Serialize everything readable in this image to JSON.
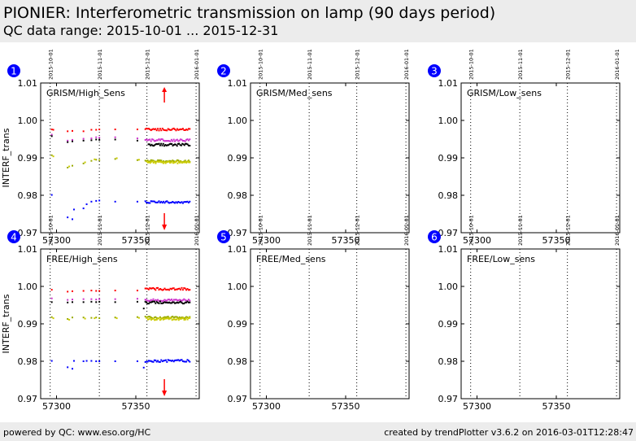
{
  "header": {
    "title": "PIONIER: Interferometric transmission on lamp (90 days period)",
    "subtitle": "QC data range: 2015-10-01 ... 2015-12-31"
  },
  "footer": {
    "left": "powered by QC: www.eso.org/HC",
    "right": "created by trendPlotter v3.6.2 on 2016-03-01T12:28:47"
  },
  "colors": {
    "red": "#ff0000",
    "magenta": "#cc33cc",
    "black": "#000000",
    "olive": "#99aa00",
    "yellow": "#cccc00",
    "blue": "#0000ff",
    "badge": "#0000ff",
    "header_bg": "#ececec"
  },
  "chart_data": [
    {
      "type": "scatter",
      "panel": "1",
      "label": "GRISM/High_Sens",
      "ylabel": "INTERF_trans",
      "xlim": [
        57290,
        57390
      ],
      "ylim": [
        0.97,
        1.01
      ],
      "xticks": [
        57300,
        57350
      ],
      "yticks": [
        0.97,
        0.98,
        0.99,
        1.0,
        1.01
      ],
      "date_markers": [
        {
          "mjd": 57296,
          "label": "2015-10-01"
        },
        {
          "mjd": 57327,
          "label": "2015-11-01"
        },
        {
          "mjd": 57357,
          "label": "2015-12-01"
        },
        {
          "mjd": 57388,
          "label": "2016-01-01"
        }
      ],
      "out_of_range_arrows": [
        {
          "x": 57368,
          "direction": "up"
        },
        {
          "x": 57368,
          "direction": "down"
        }
      ],
      "series": [
        {
          "color": "red",
          "points": [
            [
              57297,
              0.9976
            ],
            [
              57298,
              0.9975
            ],
            [
              57307,
              0.9971
            ],
            [
              57310,
              0.9972
            ],
            [
              57317,
              0.9971
            ],
            [
              57322,
              0.9975
            ],
            [
              57325,
              0.9975
            ],
            [
              57327,
              0.9976
            ],
            [
              57337,
              0.9976
            ],
            [
              57351,
              0.9976
            ]
          ],
          "dense_range": [
            57356,
            57384,
            0.9976
          ]
        },
        {
          "color": "magenta",
          "points": [
            [
              57297,
              0.9962
            ],
            [
              57307,
              0.9946
            ],
            [
              57310,
              0.9948
            ],
            [
              57317,
              0.9951
            ],
            [
              57322,
              0.9952
            ],
            [
              57325,
              0.9955
            ],
            [
              57327,
              0.9954
            ],
            [
              57337,
              0.9955
            ],
            [
              57351,
              0.9952
            ]
          ],
          "dense_range": [
            57356,
            57384,
            0.9947
          ]
        },
        {
          "color": "black",
          "points": [
            [
              57297,
              0.9958
            ],
            [
              57307,
              0.9942
            ],
            [
              57310,
              0.9944
            ],
            [
              57317,
              0.9946
            ],
            [
              57322,
              0.9947
            ],
            [
              57325,
              0.9949
            ],
            [
              57327,
              0.9948
            ],
            [
              57337,
              0.9949
            ],
            [
              57351,
              0.9946
            ]
          ],
          "dense_range": [
            57358,
            57384,
            0.9935
          ]
        },
        {
          "color": "olive",
          "points": [
            [
              57297,
              0.9907
            ],
            [
              57307,
              0.9874
            ],
            [
              57310,
              0.9879
            ],
            [
              57317,
              0.9885
            ],
            [
              57322,
              0.9892
            ],
            [
              57325,
              0.9895
            ],
            [
              57327,
              0.9894
            ],
            [
              57337,
              0.9897
            ],
            [
              57351,
              0.9894
            ]
          ],
          "dense_range": [
            57356,
            57384,
            0.9891
          ]
        },
        {
          "color": "yellow",
          "points": [
            [
              57298,
              0.9904
            ],
            [
              57308,
              0.9877
            ],
            [
              57318,
              0.9888
            ],
            [
              57324,
              0.9896
            ],
            [
              57338,
              0.9899
            ],
            [
              57352,
              0.9895
            ]
          ],
          "dense_range": [
            57357,
            57384,
            0.9888
          ]
        },
        {
          "color": "blue",
          "points": [
            [
              57297,
              0.9801
            ],
            [
              57307,
              0.9741
            ],
            [
              57310,
              0.9736
            ],
            [
              57311,
              0.9762
            ],
            [
              57317,
              0.9765
            ],
            [
              57319,
              0.9776
            ],
            [
              57322,
              0.9783
            ],
            [
              57325,
              0.9785
            ],
            [
              57327,
              0.9786
            ],
            [
              57337,
              0.9783
            ],
            [
              57351,
              0.9783
            ]
          ],
          "dense_range": [
            57356,
            57384,
            0.9782
          ]
        }
      ]
    },
    {
      "type": "scatter",
      "panel": "2",
      "label": "GRISM/Med_sens",
      "xlim": [
        57290,
        57390
      ],
      "ylim": [
        0.97,
        1.01
      ],
      "xticks": [
        57300,
        57350
      ],
      "yticks": [
        0.97,
        0.98,
        0.99,
        1.0,
        1.01
      ],
      "date_markers": [
        {
          "mjd": 57296,
          "label": "2015-10-01"
        },
        {
          "mjd": 57327,
          "label": "2015-11-01"
        },
        {
          "mjd": 57357,
          "label": "2015-12-01"
        },
        {
          "mjd": 57388,
          "label": "2016-01-01"
        }
      ],
      "series": []
    },
    {
      "type": "scatter",
      "panel": "3",
      "label": "GRISM/Low_sens",
      "xlim": [
        57290,
        57390
      ],
      "ylim": [
        0.97,
        1.01
      ],
      "xticks": [
        57300,
        57350
      ],
      "yticks": [
        0.97,
        0.98,
        0.99,
        1.0,
        1.01
      ],
      "date_markers": [
        {
          "mjd": 57296,
          "label": "2015-10-01"
        },
        {
          "mjd": 57327,
          "label": "2015-11-01"
        },
        {
          "mjd": 57357,
          "label": "2015-12-01"
        },
        {
          "mjd": 57388,
          "label": "2016-01-01"
        }
      ],
      "series": []
    },
    {
      "type": "scatter",
      "panel": "4",
      "label": "FREE/High_sens",
      "ylabel": "INTERF_trans",
      "xlim": [
        57290,
        57390
      ],
      "ylim": [
        0.97,
        1.01
      ],
      "xticks": [
        57300,
        57350
      ],
      "yticks": [
        0.97,
        0.98,
        0.99,
        1.0,
        1.01
      ],
      "date_markers": [
        {
          "mjd": 57296,
          "label": "2015-10-01"
        },
        {
          "mjd": 57327,
          "label": "2015-11-01"
        },
        {
          "mjd": 57357,
          "label": "2015-12-01"
        },
        {
          "mjd": 57388,
          "label": "2016-01-01"
        }
      ],
      "out_of_range_arrows": [
        {
          "x": 57368,
          "direction": "down"
        }
      ],
      "series": [
        {
          "color": "red",
          "points": [
            [
              57297,
              0.9991
            ],
            [
              57307,
              0.9986
            ],
            [
              57310,
              0.9987
            ],
            [
              57317,
              0.9988
            ],
            [
              57322,
              0.9989
            ],
            [
              57325,
              0.9988
            ],
            [
              57327,
              0.9988
            ],
            [
              57337,
              0.9989
            ],
            [
              57351,
              0.9989
            ]
          ],
          "dense_range": [
            57356,
            57384,
            0.9993
          ]
        },
        {
          "color": "magenta",
          "points": [
            [
              57297,
              0.9968
            ],
            [
              57307,
              0.9964
            ],
            [
              57310,
              0.9965
            ],
            [
              57317,
              0.9966
            ],
            [
              57322,
              0.9966
            ],
            [
              57325,
              0.9965
            ],
            [
              57327,
              0.9966
            ],
            [
              57337,
              0.9966
            ],
            [
              57351,
              0.9967
            ]
          ],
          "dense_range": [
            57356,
            57384,
            0.9963
          ]
        },
        {
          "color": "black",
          "points": [
            [
              57297,
              0.9958
            ],
            [
              57307,
              0.9957
            ],
            [
              57310,
              0.9958
            ],
            [
              57317,
              0.9958
            ],
            [
              57322,
              0.9959
            ],
            [
              57325,
              0.9958
            ],
            [
              57327,
              0.9959
            ],
            [
              57337,
              0.9958
            ],
            [
              57351,
              0.9959
            ],
            [
              57355,
              0.9941
            ]
          ],
          "dense_range": [
            57356,
            57384,
            0.9957
          ]
        },
        {
          "color": "olive",
          "points": [
            [
              57297,
              0.9918
            ],
            [
              57307,
              0.9913
            ],
            [
              57310,
              0.9917
            ],
            [
              57317,
              0.9917
            ],
            [
              57322,
              0.9916
            ],
            [
              57325,
              0.9917
            ],
            [
              57327,
              0.9915
            ],
            [
              57337,
              0.9917
            ],
            [
              57351,
              0.9918
            ]
          ],
          "dense_range": [
            57356,
            57384,
            0.9917
          ]
        },
        {
          "color": "yellow",
          "points": [
            [
              57298,
              0.9915
            ],
            [
              57308,
              0.9911
            ],
            [
              57318,
              0.9914
            ],
            [
              57324,
              0.9915
            ],
            [
              57338,
              0.9915
            ],
            [
              57352,
              0.9916
            ]
          ],
          "dense_range": [
            57357,
            57384,
            0.9913
          ]
        },
        {
          "color": "blue",
          "points": [
            [
              57297,
              0.9801
            ],
            [
              57307,
              0.9784
            ],
            [
              57310,
              0.978
            ],
            [
              57311,
              0.9801
            ],
            [
              57317,
              0.98
            ],
            [
              57319,
              0.9801
            ],
            [
              57322,
              0.9801
            ],
            [
              57325,
              0.98
            ],
            [
              57327,
              0.98
            ],
            [
              57337,
              0.98
            ],
            [
              57351,
              0.98
            ],
            [
              57355,
              0.9783
            ]
          ],
          "dense_range": [
            57356,
            57384,
            0.9801
          ]
        }
      ]
    },
    {
      "type": "scatter",
      "panel": "5",
      "label": "FREE/Med_sens",
      "xlim": [
        57290,
        57390
      ],
      "ylim": [
        0.97,
        1.01
      ],
      "xticks": [
        57300,
        57350
      ],
      "yticks": [
        0.97,
        0.98,
        0.99,
        1.0,
        1.01
      ],
      "date_markers": [
        {
          "mjd": 57296,
          "label": "2015-10-01"
        },
        {
          "mjd": 57327,
          "label": "2015-11-01"
        },
        {
          "mjd": 57357,
          "label": "2015-12-01"
        },
        {
          "mjd": 57388,
          "label": "2016-01-01"
        }
      ],
      "series": []
    },
    {
      "type": "scatter",
      "panel": "6",
      "label": "FREE/Low_sens",
      "xlim": [
        57290,
        57390
      ],
      "ylim": [
        0.97,
        1.01
      ],
      "xticks": [
        57300,
        57350
      ],
      "yticks": [
        0.97,
        0.98,
        0.99,
        1.0,
        1.01
      ],
      "date_markers": [
        {
          "mjd": 57296,
          "label": "2015-10-01"
        },
        {
          "mjd": 57327,
          "label": "2015-11-01"
        },
        {
          "mjd": 57357,
          "label": "2015-12-01"
        },
        {
          "mjd": 57388,
          "label": "2016-01-01"
        }
      ],
      "series": []
    }
  ]
}
